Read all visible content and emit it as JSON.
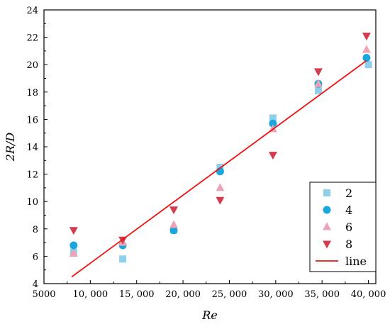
{
  "chart_data": {
    "type": "scatter",
    "xlabel": "Re",
    "ylabel": "2R/D",
    "xlim": [
      5000,
      40800
    ],
    "ylim": [
      4,
      24
    ],
    "x_ticks": [
      5000,
      10000,
      15000,
      20000,
      25000,
      30000,
      35000,
      40000
    ],
    "x_tick_labels": [
      "5000",
      "10, 000",
      "15, 000",
      "20, 000",
      "25, 000",
      "30, 000",
      "35, 000",
      "40, 000"
    ],
    "y_ticks": [
      4,
      6,
      8,
      10,
      12,
      14,
      16,
      18,
      20,
      22,
      24
    ],
    "y_tick_labels": [
      "4",
      "6",
      "8",
      "10",
      "12",
      "14",
      "16",
      "18",
      "20",
      "22",
      "24"
    ],
    "legend_position": "bottom-right",
    "series": [
      {
        "name": "2",
        "marker": "square",
        "color": "#8fcfea",
        "points": [
          [
            8200,
            6.3
          ],
          [
            13500,
            5.8
          ],
          [
            19000,
            7.9
          ],
          [
            24000,
            12.5
          ],
          [
            29700,
            16.1
          ],
          [
            34600,
            18.1
          ],
          [
            40000,
            20.0
          ]
        ]
      },
      {
        "name": "4",
        "marker": "circle",
        "color": "#1aa6dc",
        "points": [
          [
            8200,
            6.8
          ],
          [
            13500,
            6.8
          ],
          [
            19000,
            7.9
          ],
          [
            24000,
            12.2
          ],
          [
            29700,
            15.7
          ],
          [
            34600,
            18.6
          ],
          [
            39800,
            20.5
          ]
        ]
      },
      {
        "name": "6",
        "marker": "triangle-up",
        "color": "#eea2b6",
        "points": [
          [
            8200,
            6.2
          ],
          [
            13500,
            7.0
          ],
          [
            19000,
            8.3
          ],
          [
            24000,
            11.0
          ],
          [
            29700,
            15.3
          ],
          [
            34600,
            18.6
          ],
          [
            39800,
            21.1
          ]
        ]
      },
      {
        "name": "8",
        "marker": "triangle-down",
        "color": "#d23c4f",
        "points": [
          [
            8200,
            7.9
          ],
          [
            13500,
            7.2
          ],
          [
            19000,
            9.4
          ],
          [
            24000,
            10.1
          ],
          [
            29700,
            13.4
          ],
          [
            34600,
            19.5
          ],
          [
            39800,
            22.1
          ]
        ]
      },
      {
        "name": "line",
        "marker": "line",
        "color": "#ee1111",
        "points": [
          [
            8000,
            4.5
          ],
          [
            39800,
            20.3
          ]
        ]
      }
    ]
  }
}
